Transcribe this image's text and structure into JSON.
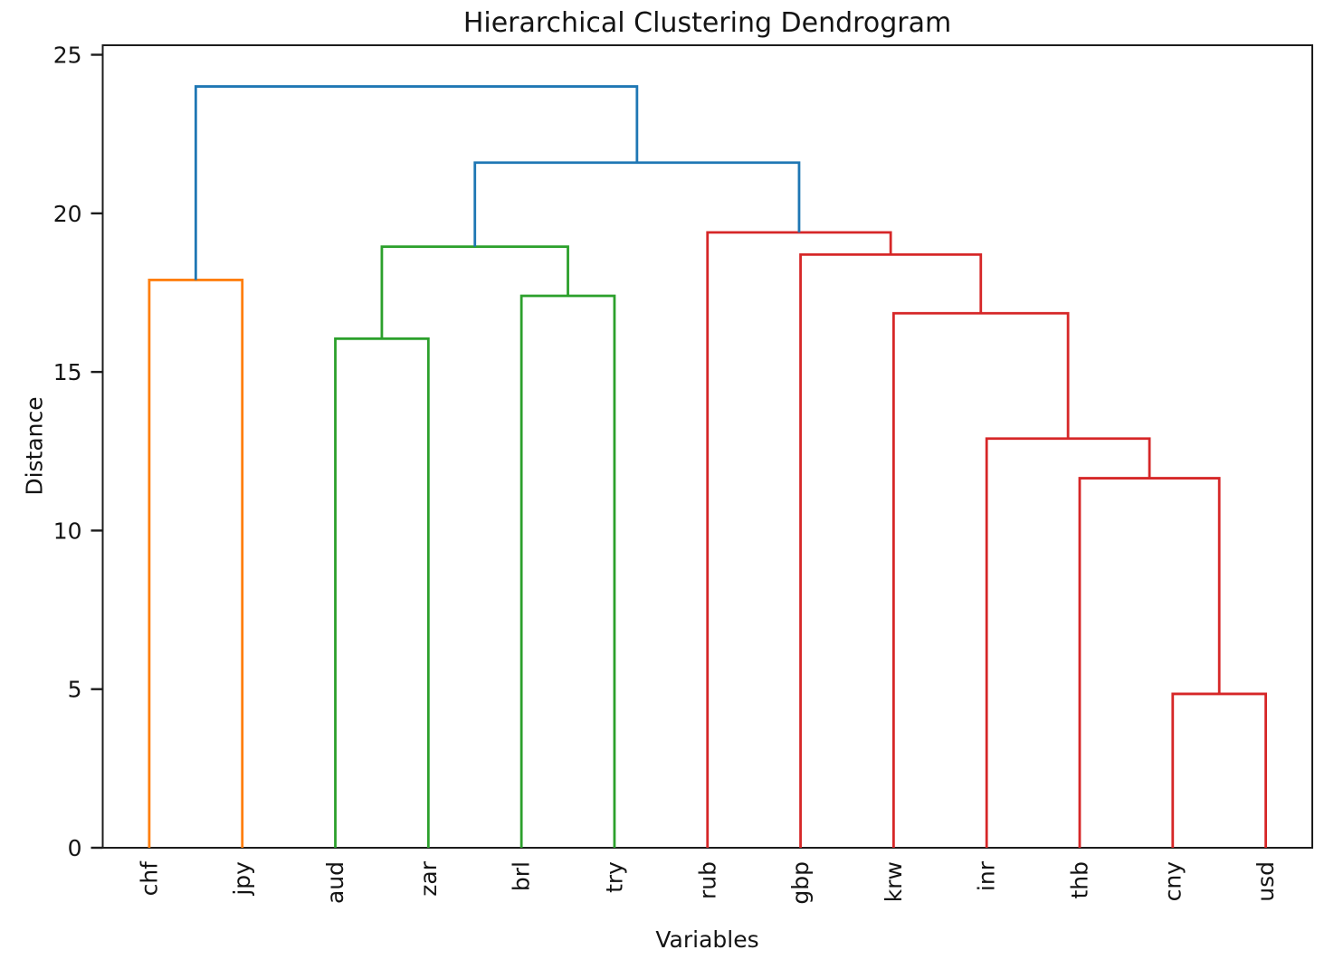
{
  "title": "Hierarchical Clustering Dendrogram",
  "xlabel": "Variables",
  "ylabel": "Distance",
  "colors": {
    "blue": "#1f77b4",
    "orange": "#ff7f0e",
    "green": "#2ca02c",
    "red": "#d62728",
    "axis": "#1c1c1c",
    "background": "#ffffff"
  },
  "chart_data": {
    "type": "dendrogram",
    "title": "Hierarchical Clustering Dendrogram",
    "xlabel": "Variables",
    "ylabel": "Distance",
    "leaves": [
      "chf",
      "jpy",
      "aud",
      "zar",
      "brl",
      "try",
      "rub",
      "gbp",
      "krw",
      "inr",
      "thb",
      "cny",
      "usd"
    ],
    "yticks": [
      0,
      5,
      10,
      15,
      20,
      25
    ],
    "ylim": [
      0,
      25.3
    ],
    "grid": false,
    "legend": "none",
    "merges": [
      {
        "id": "O1",
        "left": "chf",
        "right": "jpy",
        "height": 17.9,
        "color": "orange"
      },
      {
        "id": "G1",
        "left": "aud",
        "right": "zar",
        "height": 16.05,
        "color": "green"
      },
      {
        "id": "G2",
        "left": "brl",
        "right": "try",
        "height": 17.4,
        "color": "green"
      },
      {
        "id": "G3",
        "left": "G1",
        "right": "G2",
        "height": 18.95,
        "color": "green"
      },
      {
        "id": "R1",
        "left": "cny",
        "right": "usd",
        "height": 4.85,
        "color": "red"
      },
      {
        "id": "R2",
        "left": "thb",
        "right": "R1",
        "height": 11.65,
        "color": "red"
      },
      {
        "id": "R3",
        "left": "inr",
        "right": "R2",
        "height": 12.9,
        "color": "red"
      },
      {
        "id": "R4",
        "left": "krw",
        "right": "R3",
        "height": 16.85,
        "color": "red"
      },
      {
        "id": "R5",
        "left": "gbp",
        "right": "R4",
        "height": 18.7,
        "color": "red"
      },
      {
        "id": "R6",
        "left": "rub",
        "right": "R5",
        "height": 19.4,
        "color": "red"
      },
      {
        "id": "B1",
        "left": "G3",
        "right": "R6",
        "height": 21.6,
        "color": "blue"
      },
      {
        "id": "B2",
        "left": "O1",
        "right": "B1",
        "height": 24.0,
        "color": "blue"
      }
    ]
  }
}
